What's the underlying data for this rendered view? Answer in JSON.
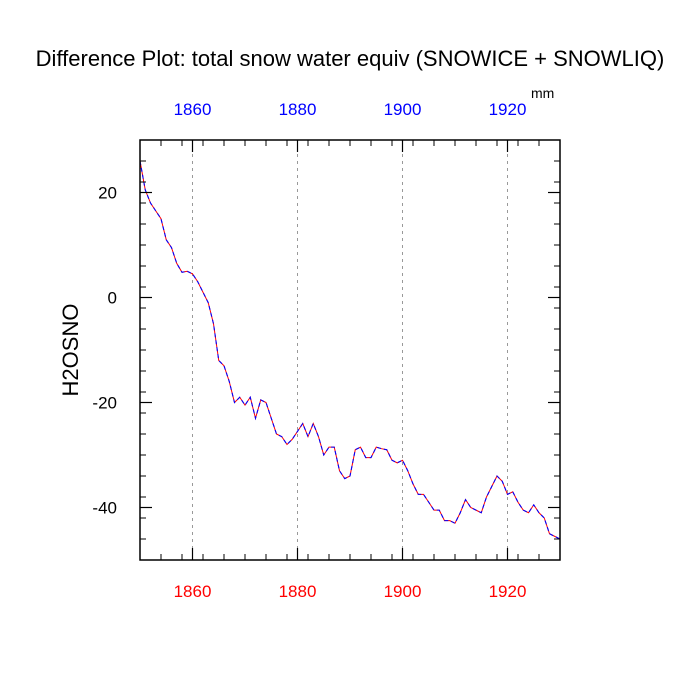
{
  "chart_data": {
    "type": "line",
    "title": "Difference Plot: total snow water equiv (SNOWICE + SNOWLIQ)",
    "units": "mm",
    "ylabel": "H2OSNO",
    "xlim": [
      1850,
      1930
    ],
    "ylim": [
      -50,
      30
    ],
    "x_ticks": [
      1860,
      1880,
      1900,
      1920
    ],
    "x_tick_labels": [
      "1860",
      "1880",
      "1900",
      "1920"
    ],
    "y_ticks": [
      20,
      0,
      -20,
      -40
    ],
    "y_tick_labels": [
      "20",
      "0",
      "-20",
      "-40"
    ],
    "grid": "vertical dashed at x ticks",
    "colors": {
      "bottom_axis_labels": "#ff0000",
      "top_axis_labels": "#0000ff",
      "line_dash": "#0000ff",
      "line_gap": "#ff0000"
    },
    "series": [
      {
        "line_style": "dashed",
        "x": [
          1850,
          1851,
          1852,
          1853,
          1854,
          1855,
          1856,
          1857,
          1858,
          1859,
          1860,
          1861,
          1862,
          1863,
          1864,
          1865,
          1866,
          1867,
          1868,
          1869,
          1870,
          1871,
          1872,
          1873,
          1874,
          1875,
          1876,
          1877,
          1878,
          1879,
          1880,
          1881,
          1882,
          1883,
          1884,
          1885,
          1886,
          1887,
          1888,
          1889,
          1890,
          1891,
          1892,
          1893,
          1894,
          1895,
          1896,
          1897,
          1898,
          1899,
          1900,
          1901,
          1902,
          1903,
          1904,
          1905,
          1906,
          1907,
          1908,
          1909,
          1910,
          1911,
          1912,
          1913,
          1914,
          1915,
          1916,
          1917,
          1918,
          1919,
          1920,
          1921,
          1922,
          1923,
          1924,
          1925,
          1926,
          1927,
          1928,
          1929,
          1930
        ],
        "y": [
          26,
          20.5,
          18,
          16.5,
          15,
          11,
          9.5,
          6.5,
          4.8,
          5,
          4.5,
          3,
          1,
          -1,
          -5,
          -12,
          -13,
          -16,
          -20,
          -19,
          -20.5,
          -19,
          -23,
          -19.5,
          -20,
          -23,
          -26,
          -26.5,
          -28,
          -27,
          -25.5,
          -24,
          -26.5,
          -24,
          -26.5,
          -30,
          -28.5,
          -28.5,
          -33,
          -34.5,
          -34,
          -29,
          -28.5,
          -30.5,
          -30.5,
          -28.5,
          -28.8,
          -29,
          -31,
          -31.5,
          -31,
          -33,
          -35.5,
          -37.5,
          -37.5,
          -39,
          -40.5,
          -40.5,
          -42.5,
          -42.5,
          -43,
          -41,
          -38.5,
          -40,
          -40.5,
          -41,
          -38,
          -36,
          -34,
          -35,
          -37.5,
          -37,
          -39,
          -40.5,
          -41,
          -39.5,
          -41,
          -42,
          -45,
          -45.5,
          -46
        ]
      }
    ]
  }
}
